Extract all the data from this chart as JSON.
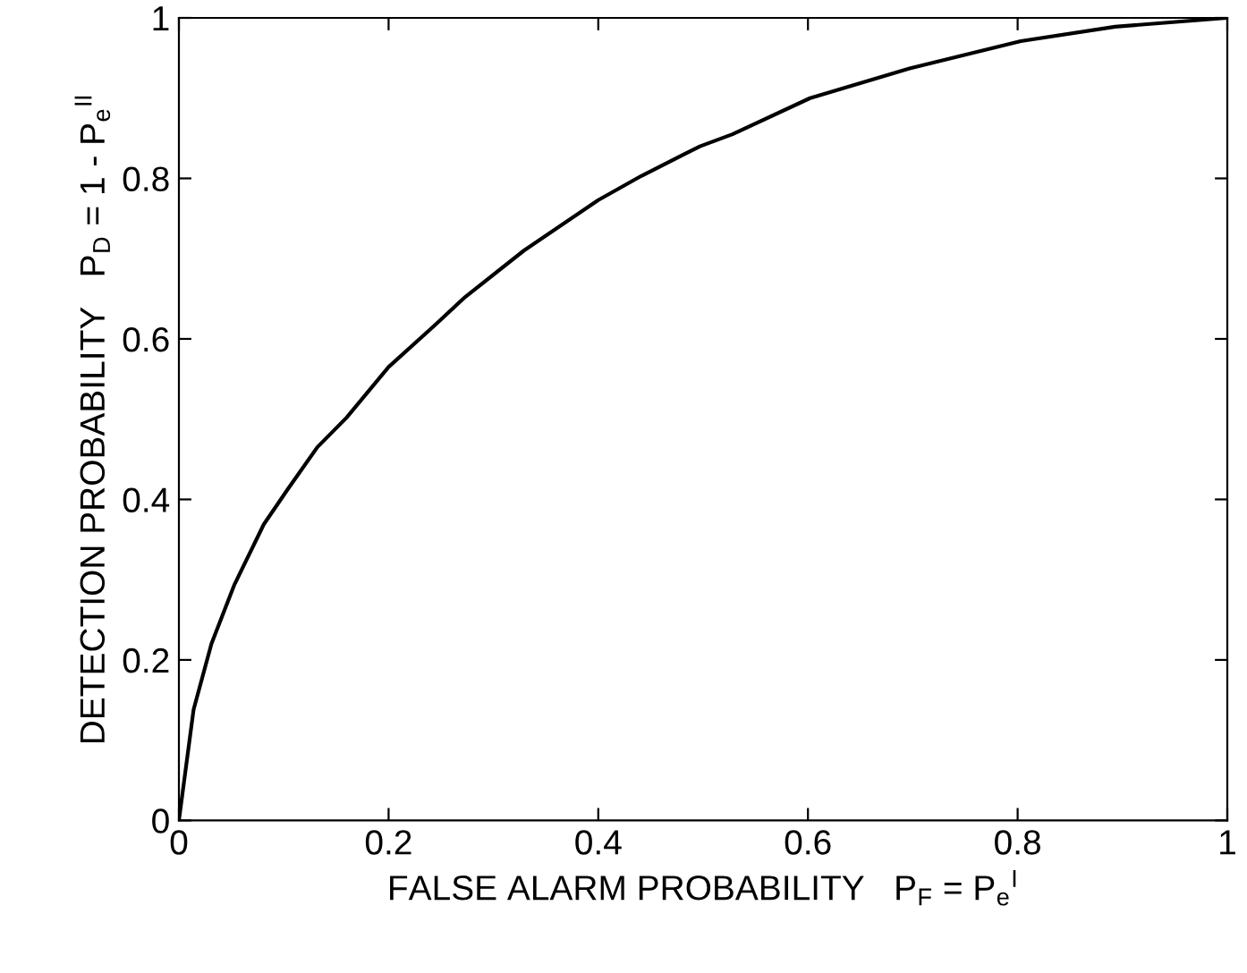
{
  "chart_data": {
    "type": "line",
    "xlabel": "FALSE ALARM PROBABILITY   P$_{F}$ = P$_{e}$$^{I}$",
    "ylabel": "DETECTION PROBABILITY   P$_{D}$ = 1 - P$_{e}$$^{II}$",
    "x": [
      0,
      0.014,
      0.031,
      0.053,
      0.081,
      0.104,
      0.132,
      0.16,
      0.2,
      0.244,
      0.272,
      0.329,
      0.4,
      0.441,
      0.497,
      0.528,
      0.602,
      0.697,
      0.803,
      0.893,
      1
    ],
    "series": [
      {
        "color": "#000000",
        "values": [
          0,
          0.138,
          0.22,
          0.294,
          0.369,
          0.413,
          0.465,
          0.502,
          0.565,
          0.617,
          0.651,
          0.71,
          0.773,
          0.803,
          0.84,
          0.855,
          0.9,
          0.937,
          0.971,
          0.989,
          1
        ]
      }
    ],
    "xlim": [
      0,
      1
    ],
    "ylim": [
      0,
      1
    ],
    "xticks": [
      0,
      0.2,
      0.4,
      0.6,
      0.8,
      1
    ],
    "yticks": [
      0,
      0.2,
      0.4,
      0.6,
      0.8,
      1
    ],
    "grid": false,
    "legend": false,
    "marker": "none",
    "line_style": "solid"
  }
}
